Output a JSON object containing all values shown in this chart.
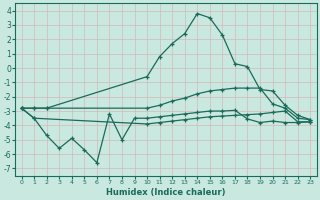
{
  "xlabel": "Humidex (Indice chaleur)",
  "bg_color": "#c8e8e0",
  "grid_color": "#d4b8b8",
  "line_color": "#1a6b5a",
  "xlim": [
    -0.5,
    23.5
  ],
  "ylim": [
    -7.5,
    4.5
  ],
  "yticks": [
    4,
    3,
    2,
    1,
    0,
    -1,
    -2,
    -3,
    -4,
    -5,
    -6,
    -7
  ],
  "xticks": [
    0,
    1,
    2,
    3,
    4,
    5,
    6,
    7,
    8,
    9,
    10,
    11,
    12,
    13,
    14,
    15,
    16,
    17,
    18,
    19,
    20,
    21,
    22,
    23
  ],
  "line1_x": [
    0,
    1,
    2,
    10,
    11,
    12,
    13,
    14,
    15,
    16,
    17,
    18,
    19,
    20,
    21,
    22,
    23
  ],
  "line1_y": [
    -2.8,
    -2.8,
    -2.8,
    -0.6,
    0.8,
    1.7,
    2.4,
    3.8,
    3.5,
    2.3,
    0.3,
    0.1,
    -1.5,
    -1.6,
    -2.6,
    -3.3,
    -3.6
  ],
  "line2_x": [
    0,
    1,
    2,
    10,
    11,
    12,
    13,
    14,
    15,
    16,
    17,
    18,
    19,
    20,
    21,
    22,
    23
  ],
  "line2_y": [
    -2.8,
    -2.8,
    -2.8,
    -2.8,
    -2.6,
    -2.3,
    -2.1,
    -1.8,
    -1.6,
    -1.5,
    -1.4,
    -1.4,
    -1.4,
    -2.5,
    -2.8,
    -3.5,
    -3.6
  ],
  "line3_x": [
    0,
    1,
    2,
    3,
    4,
    5,
    6,
    7,
    8,
    9,
    10,
    11,
    12,
    13,
    14,
    15,
    16,
    17,
    18,
    19,
    20,
    21,
    22,
    23
  ],
  "line3_y": [
    -2.8,
    -3.5,
    -4.7,
    -5.6,
    -4.9,
    -5.7,
    -6.6,
    -3.2,
    -5.0,
    -3.5,
    -3.5,
    -3.4,
    -3.3,
    -3.2,
    -3.1,
    -3.0,
    -3.0,
    -2.95,
    -3.55,
    -3.8,
    -3.7,
    -3.8,
    -3.8,
    -3.75
  ],
  "line4_x": [
    0,
    1,
    10,
    11,
    12,
    13,
    14,
    15,
    16,
    17,
    18,
    19,
    20,
    21,
    22,
    23
  ],
  "line4_y": [
    -2.8,
    -3.5,
    -3.9,
    -3.8,
    -3.7,
    -3.6,
    -3.5,
    -3.4,
    -3.35,
    -3.3,
    -3.25,
    -3.2,
    -3.1,
    -3.0,
    -3.75,
    -3.75
  ]
}
